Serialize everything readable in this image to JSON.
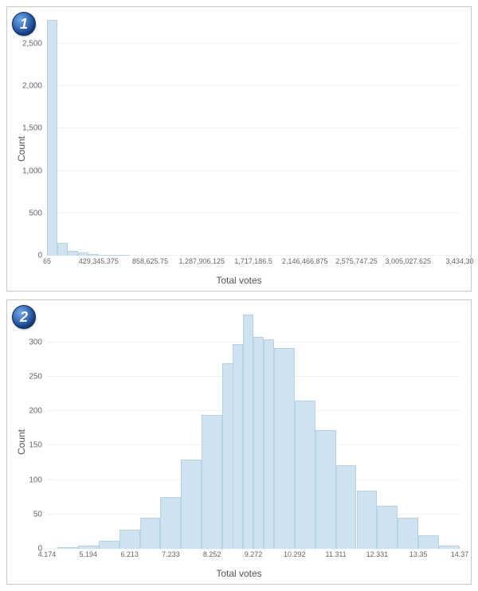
{
  "chart1": {
    "badge": "1",
    "type": "histogram",
    "xlabel": "Total votes",
    "ylabel": "Count",
    "background_color": "#ffffff",
    "border_color": "#c8c8c8",
    "grid_color": "#f0f0f0",
    "tick_color": "#666666",
    "label_color": "#555555",
    "bar_fill": "#cee3ef",
    "bar_stroke": "#b7d3e4",
    "label_fontsize": 12,
    "tick_fontsize": 10,
    "ylim": [
      0,
      2800
    ],
    "yticks": [
      0,
      500,
      1000,
      1500,
      2000,
      2500
    ],
    "xticks_labels": [
      "65",
      "429,345.375",
      "858,625.75",
      "1,287,906.125",
      "1,717,186.5",
      "2,146,466.875",
      "2,575,747.25",
      "3,005,027.625",
      "3,434,30"
    ],
    "xticks_positions_pct": [
      0,
      12.5,
      25,
      37.5,
      50,
      62.5,
      75,
      87.5,
      100
    ],
    "bars": [
      {
        "left_pct": 0.0,
        "width_pct": 2.5,
        "value": 2780
      },
      {
        "left_pct": 2.5,
        "width_pct": 2.5,
        "value": 150
      },
      {
        "left_pct": 5.0,
        "width_pct": 2.5,
        "value": 55
      },
      {
        "left_pct": 7.5,
        "width_pct": 2.5,
        "value": 35
      },
      {
        "left_pct": 10.0,
        "width_pct": 2.5,
        "value": 18
      },
      {
        "left_pct": 12.5,
        "width_pct": 2.5,
        "value": 10
      },
      {
        "left_pct": 15.0,
        "width_pct": 2.5,
        "value": 5
      },
      {
        "left_pct": 17.5,
        "width_pct": 2.5,
        "value": 3
      }
    ]
  },
  "chart2": {
    "badge": "2",
    "type": "histogram",
    "xlabel": "Total votes",
    "ylabel": "Count",
    "background_color": "#ffffff",
    "border_color": "#c8c8c8",
    "grid_color": "#f0f0f0",
    "tick_color": "#666666",
    "label_color": "#555555",
    "bar_fill": "#cee3ef",
    "bar_stroke": "#b7d3e4",
    "label_fontsize": 12,
    "tick_fontsize": 10,
    "ylim": [
      0,
      345
    ],
    "yticks": [
      0,
      50,
      100,
      150,
      200,
      250,
      300
    ],
    "xticks_labels": [
      "4.174",
      "5.194",
      "6.213",
      "7.233",
      "8.252",
      "9.272",
      "10.292",
      "11.311",
      "12.331",
      "13.35",
      "14.37"
    ],
    "xticks_positions_pct": [
      0,
      10,
      20,
      30,
      40,
      50,
      60,
      70,
      80,
      90,
      100
    ],
    "bars": [
      {
        "left_pct": 2.5,
        "width_pct": 5,
        "value": 2
      },
      {
        "left_pct": 7.5,
        "width_pct": 5,
        "value": 5
      },
      {
        "left_pct": 12.5,
        "width_pct": 5,
        "value": 12
      },
      {
        "left_pct": 17.5,
        "width_pct": 5,
        "value": 28
      },
      {
        "left_pct": 22.5,
        "width_pct": 5,
        "value": 45
      },
      {
        "left_pct": 27.5,
        "width_pct": 5,
        "value": 75
      },
      {
        "left_pct": 32.5,
        "width_pct": 5,
        "value": 130
      },
      {
        "left_pct": 37.5,
        "width_pct": 5,
        "value": 195
      },
      {
        "left_pct": 42.5,
        "width_pct": 5,
        "value": 270
      },
      {
        "left_pct": 45.0,
        "width_pct": 2.5,
        "value": 298
      },
      {
        "left_pct": 47.5,
        "width_pct": 2.5,
        "value": 340
      },
      {
        "left_pct": 50.0,
        "width_pct": 2.5,
        "value": 308
      },
      {
        "left_pct": 52.5,
        "width_pct": 2.5,
        "value": 305
      },
      {
        "left_pct": 55.0,
        "width_pct": 5,
        "value": 292
      },
      {
        "left_pct": 60.0,
        "width_pct": 5,
        "value": 215
      },
      {
        "left_pct": 65.0,
        "width_pct": 5,
        "value": 172
      },
      {
        "left_pct": 70.0,
        "width_pct": 5,
        "value": 122
      },
      {
        "left_pct": 75.0,
        "width_pct": 5,
        "value": 85
      },
      {
        "left_pct": 80.0,
        "width_pct": 5,
        "value": 62
      },
      {
        "left_pct": 85.0,
        "width_pct": 5,
        "value": 45
      },
      {
        "left_pct": 90.0,
        "width_pct": 5,
        "value": 20
      },
      {
        "left_pct": 95.0,
        "width_pct": 5,
        "value": 5
      }
    ]
  }
}
